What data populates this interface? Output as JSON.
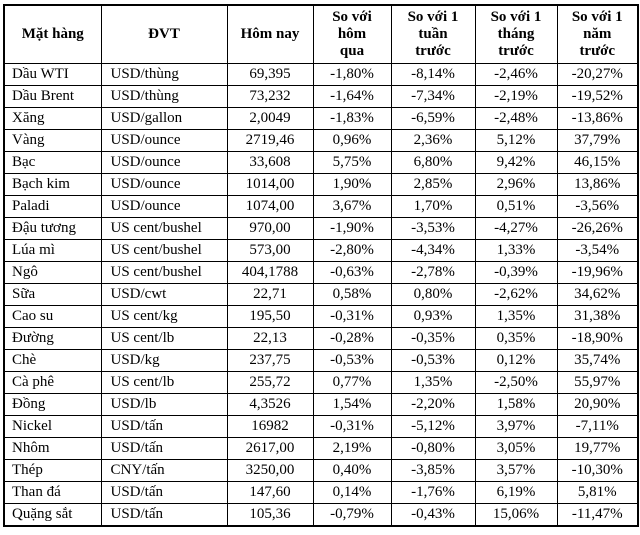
{
  "page": {
    "background_color": "#ffffff",
    "border_color": "#000000",
    "text_color": "#000000"
  },
  "chart_data": {
    "type": "table",
    "columns": [
      "Mặt hàng",
      "ĐVT",
      "Hôm nay",
      "So với\nhôm\nqua",
      "So với 1\ntuần\ntrước",
      "So với 1\ntháng\ntrước",
      "So với 1\nnăm\ntrước"
    ],
    "column_keys": [
      "item",
      "unit",
      "today",
      "vs-yesterday",
      "vs-1-week",
      "vs-1-month",
      "vs-1-year"
    ],
    "rows": [
      [
        "Dầu WTI",
        "USD/thùng",
        "69,395",
        "-1,80%",
        "-8,14%",
        "-2,46%",
        "-20,27%"
      ],
      [
        "Dầu Brent",
        "USD/thùng",
        "73,232",
        "-1,64%",
        "-7,34%",
        "-2,19%",
        "-19,52%"
      ],
      [
        "Xăng",
        "USD/gallon",
        "2,0049",
        "-1,83%",
        "-6,59%",
        "-2,48%",
        "-13,86%"
      ],
      [
        "Vàng",
        "USD/ounce",
        "2719,46",
        "0,96%",
        "2,36%",
        "5,12%",
        "37,79%"
      ],
      [
        "Bạc",
        "USD/ounce",
        "33,608",
        "5,75%",
        "6,80%",
        "9,42%",
        "46,15%"
      ],
      [
        "Bạch kim",
        "USD/ounce",
        "1014,00",
        "1,90%",
        "2,85%",
        "2,96%",
        "13,86%"
      ],
      [
        "Paladi",
        "USD/ounce",
        "1074,00",
        "3,67%",
        "1,70%",
        "0,51%",
        "-3,56%"
      ],
      [
        "Đậu tương",
        "US cent/bushel",
        "970,00",
        "-1,90%",
        "-3,53%",
        "-4,27%",
        "-26,26%"
      ],
      [
        "Lúa mì",
        "US cent/bushel",
        "573,00",
        "-2,80%",
        "-4,34%",
        "1,33%",
        "-3,54%"
      ],
      [
        "Ngô",
        "US cent/bushel",
        "404,1788",
        "-0,63%",
        "-2,78%",
        "-0,39%",
        "-19,96%"
      ],
      [
        "Sữa",
        "USD/cwt",
        "22,71",
        "0,58%",
        "0,80%",
        "-2,62%",
        "34,62%"
      ],
      [
        "Cao su",
        "US cent/kg",
        "195,50",
        "-0,31%",
        "0,93%",
        "1,35%",
        "31,38%"
      ],
      [
        "Đường",
        "US cent/lb",
        "22,13",
        "-0,28%",
        "-0,35%",
        "0,35%",
        "-18,90%"
      ],
      [
        "Chè",
        "USD/kg",
        "237,75",
        "-0,53%",
        "-0,53%",
        "0,12%",
        "35,74%"
      ],
      [
        "Cà phê",
        "US cent/lb",
        "255,72",
        "0,77%",
        "1,35%",
        "-2,50%",
        "55,97%"
      ],
      [
        "Đồng",
        "USD/lb",
        "4,3526",
        "1,54%",
        "-2,20%",
        "1,58%",
        "20,90%"
      ],
      [
        "Nickel",
        "USD/tấn",
        "16982",
        "-0,31%",
        "-5,12%",
        "3,97%",
        "-7,11%"
      ],
      [
        "Nhôm",
        "USD/tấn",
        "2617,00",
        "2,19%",
        "-0,80%",
        "3,05%",
        "19,77%"
      ],
      [
        "Thép",
        "CNY/tấn",
        "3250,00",
        "0,40%",
        "-3,85%",
        "3,57%",
        "-10,30%"
      ],
      [
        "Than đá",
        "USD/tấn",
        "147,60",
        "0,14%",
        "-1,76%",
        "6,19%",
        "5,81%"
      ],
      [
        "Quặng sắt",
        "USD/tấn",
        "105,36",
        "-0,79%",
        "-0,43%",
        "15,06%",
        "-11,47%"
      ]
    ]
  }
}
